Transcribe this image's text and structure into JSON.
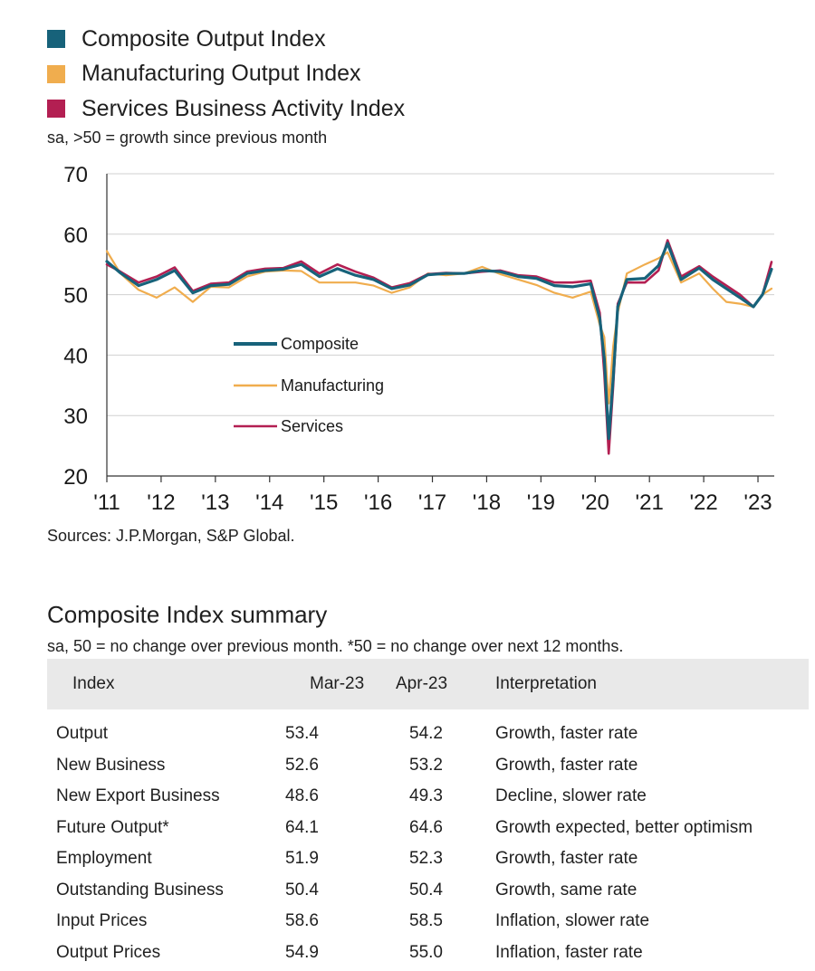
{
  "legend": [
    {
      "label": "Composite Output Index",
      "color": "#17627a"
    },
    {
      "label": "Manufacturing Output Index",
      "color": "#f0ad4e"
    },
    {
      "label": "Services Business Activity Index",
      "color": "#b31f52"
    }
  ],
  "subtitle": "sa, >50 = growth since previous month",
  "sources": "Sources: J.P.Morgan, S&P Global.",
  "chart_data": {
    "type": "line",
    "ylim": [
      20,
      70
    ],
    "yticks": [
      "70",
      "60",
      "50",
      "40",
      "30",
      "20"
    ],
    "xticks": [
      "'11",
      "'12",
      "'13",
      "'14",
      "'15",
      "'16",
      "'17",
      "'18",
      "'19",
      "'20",
      "'21",
      "'22",
      "'23"
    ],
    "inner_legend": [
      "Composite",
      "Manufacturing",
      "Services"
    ],
    "series": [
      {
        "name": "Composite",
        "color": "#17627a",
        "x": [
          "2011-01",
          "2011-04",
          "2011-08",
          "2011-12",
          "2012-04",
          "2012-08",
          "2012-12",
          "2013-04",
          "2013-08",
          "2013-12",
          "2014-04",
          "2014-08",
          "2014-12",
          "2015-04",
          "2015-08",
          "2015-12",
          "2016-04",
          "2016-08",
          "2016-12",
          "2017-04",
          "2017-08",
          "2017-12",
          "2018-04",
          "2018-08",
          "2018-12",
          "2019-04",
          "2019-08",
          "2019-12",
          "2020-02",
          "2020-03",
          "2020-04",
          "2020-05",
          "2020-06",
          "2020-08",
          "2020-12",
          "2021-03",
          "2021-05",
          "2021-08",
          "2021-12",
          "2022-03",
          "2022-06",
          "2022-09",
          "2022-12",
          "2023-02",
          "2023-04"
        ],
        "values": [
          55.5,
          53.6,
          51.5,
          52.5,
          54.0,
          50.3,
          51.5,
          51.7,
          53.5,
          54.0,
          54.2,
          55.0,
          53.0,
          54.3,
          53.2,
          52.5,
          51.0,
          51.6,
          53.3,
          53.5,
          53.5,
          54.0,
          53.8,
          53.0,
          52.7,
          51.5,
          51.3,
          51.8,
          46.1,
          39.4,
          26.2,
          36.3,
          48.0,
          52.5,
          52.7,
          54.8,
          58.5,
          52.5,
          54.4,
          52.5,
          51.0,
          49.5,
          48.0,
          50.0,
          54.2
        ]
      },
      {
        "name": "Manufacturing",
        "color": "#f0ad4e",
        "x": [
          "2011-01",
          "2011-04",
          "2011-08",
          "2011-12",
          "2012-04",
          "2012-08",
          "2012-12",
          "2013-04",
          "2013-08",
          "2013-12",
          "2014-04",
          "2014-08",
          "2014-12",
          "2015-04",
          "2015-08",
          "2015-12",
          "2016-04",
          "2016-08",
          "2016-12",
          "2017-04",
          "2017-08",
          "2017-12",
          "2018-04",
          "2018-08",
          "2018-12",
          "2019-04",
          "2019-08",
          "2019-12",
          "2020-02",
          "2020-03",
          "2020-04",
          "2020-05",
          "2020-06",
          "2020-08",
          "2020-12",
          "2021-03",
          "2021-05",
          "2021-08",
          "2021-12",
          "2022-03",
          "2022-06",
          "2022-09",
          "2022-12",
          "2023-02",
          "2023-04"
        ],
        "values": [
          57.2,
          53.5,
          50.8,
          49.5,
          51.2,
          48.8,
          51.3,
          51.2,
          53.0,
          53.8,
          54.0,
          53.9,
          52.0,
          52.0,
          52.0,
          51.5,
          50.3,
          51.2,
          53.5,
          53.2,
          53.5,
          54.6,
          53.4,
          52.5,
          51.6,
          50.3,
          49.5,
          50.5,
          45.0,
          43.0,
          32.0,
          41.5,
          47.0,
          53.5,
          55.0,
          56.0,
          57.0,
          52.0,
          53.5,
          51.0,
          48.8,
          48.5,
          48.0,
          50.0,
          51.0
        ]
      },
      {
        "name": "Services",
        "color": "#b31f52",
        "x": [
          "2011-01",
          "2011-04",
          "2011-08",
          "2011-12",
          "2012-04",
          "2012-08",
          "2012-12",
          "2013-04",
          "2013-08",
          "2013-12",
          "2014-04",
          "2014-08",
          "2014-12",
          "2015-04",
          "2015-08",
          "2015-12",
          "2016-04",
          "2016-08",
          "2016-12",
          "2017-04",
          "2017-08",
          "2017-12",
          "2018-04",
          "2018-08",
          "2018-12",
          "2019-04",
          "2019-08",
          "2019-12",
          "2020-02",
          "2020-03",
          "2020-04",
          "2020-05",
          "2020-06",
          "2020-08",
          "2020-12",
          "2021-03",
          "2021-05",
          "2021-08",
          "2021-12",
          "2022-03",
          "2022-06",
          "2022-09",
          "2022-12",
          "2023-02",
          "2023-04"
        ],
        "values": [
          55.0,
          53.8,
          52.0,
          53.0,
          54.5,
          50.6,
          51.8,
          52.0,
          53.8,
          54.3,
          54.4,
          55.5,
          53.5,
          55.0,
          53.8,
          52.8,
          51.2,
          51.9,
          53.4,
          53.6,
          53.5,
          53.8,
          54.0,
          53.2,
          53.0,
          52.0,
          52.0,
          52.3,
          47.0,
          37.0,
          23.7,
          35.0,
          48.5,
          52.0,
          52.0,
          54.0,
          59.0,
          53.0,
          54.7,
          53.0,
          51.5,
          50.0,
          48.0,
          50.0,
          55.4
        ]
      }
    ]
  },
  "summary": {
    "title": "Composite Index summary",
    "subtitle": "sa, 50 = no change over previous month. *50 = no change over next 12 months.",
    "headers": [
      "Index",
      "Mar-23",
      "Apr-23",
      "Interpretation"
    ],
    "rows": [
      [
        "Output",
        "53.4",
        "54.2",
        "Growth, faster rate"
      ],
      [
        "New Business",
        "52.6",
        "53.2",
        "Growth, faster rate"
      ],
      [
        "New Export Business",
        "48.6",
        "49.3",
        "Decline, slower rate"
      ],
      [
        "Future Output*",
        "64.1",
        "64.6",
        "Growth expected, better optimism"
      ],
      [
        "Employment",
        "51.9",
        "52.3",
        "Growth, faster rate"
      ],
      [
        "Outstanding Business",
        "50.4",
        "50.4",
        "Growth, same rate"
      ],
      [
        "Input Prices",
        "58.6",
        "58.5",
        "Inflation, slower rate"
      ],
      [
        "Output Prices",
        "54.9",
        "55.0",
        "Inflation, faster rate"
      ]
    ]
  }
}
